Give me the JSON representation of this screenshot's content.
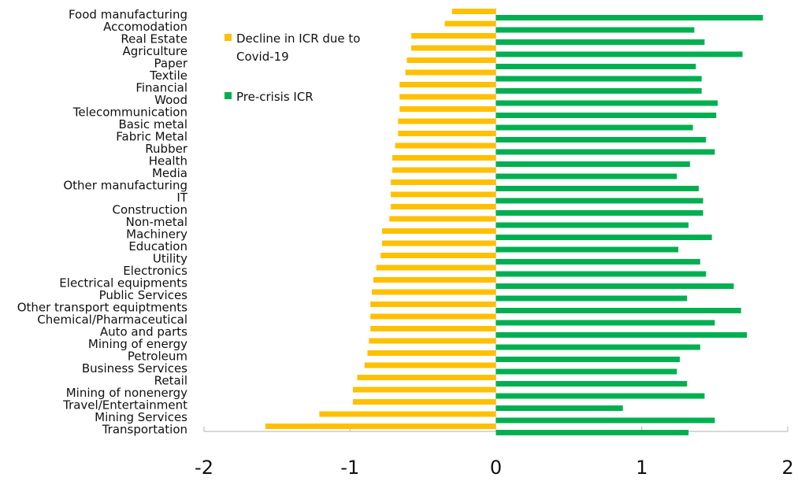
{
  "chart_data": {
    "type": "bar",
    "orientation": "horizontal",
    "categories": [
      "Food manufacturing",
      "Accomodation",
      "Real Estate",
      "Agriculture",
      "Paper",
      "Textile",
      "Financial",
      "Wood",
      "Telecommunication",
      "Basic metal",
      "Fabric Metal",
      "Rubber",
      "Health",
      "Media",
      "Other manufacturing",
      "IT",
      "Construction",
      "Non-metal",
      "Machinery",
      "Education",
      "Utility",
      "Electronics",
      "Electrical equipments",
      "Public Services",
      "Other transport equiptments",
      "Chemical/Pharmaceutical",
      "Auto and parts",
      "Mining of energy",
      "Petroleum",
      "Business Services",
      "Retail",
      "Mining of nonenergy",
      "Travel/Entertainment",
      "Mining Services",
      "Transportation"
    ],
    "series": [
      {
        "name": "Decline in ICR due to Covid-19",
        "color": "#ffc000",
        "values": [
          -0.3,
          -0.35,
          -0.58,
          -0.58,
          -0.61,
          -0.62,
          -0.66,
          -0.66,
          -0.66,
          -0.67,
          -0.67,
          -0.69,
          -0.71,
          -0.71,
          -0.72,
          -0.72,
          -0.72,
          -0.73,
          -0.78,
          -0.78,
          -0.79,
          -0.82,
          -0.84,
          -0.85,
          -0.86,
          -0.86,
          -0.86,
          -0.87,
          -0.88,
          -0.9,
          -0.95,
          -0.98,
          -0.98,
          -1.21,
          -1.58
        ]
      },
      {
        "name": "Pre-crisis ICR",
        "color": "#00b050",
        "values": [
          1.83,
          1.36,
          1.43,
          1.69,
          1.37,
          1.41,
          1.41,
          1.52,
          1.51,
          1.35,
          1.44,
          1.5,
          1.33,
          1.24,
          1.39,
          1.42,
          1.42,
          1.32,
          1.48,
          1.25,
          1.4,
          1.44,
          1.63,
          1.31,
          1.68,
          1.5,
          1.72,
          1.4,
          1.26,
          1.24,
          1.31,
          1.43,
          0.87,
          1.5,
          1.32
        ]
      }
    ],
    "xlim": [
      -2,
      2
    ],
    "xticks": [
      "-2",
      "-1",
      "0",
      "1",
      "2"
    ],
    "title": "",
    "xlabel": "",
    "ylabel": "",
    "grid": false,
    "legend_position": "upper-left-inside"
  }
}
